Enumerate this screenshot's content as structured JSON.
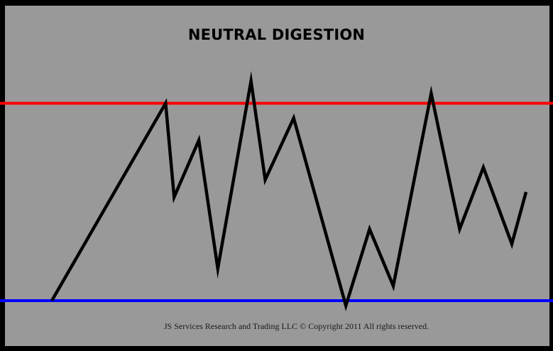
{
  "title": "NEUTRAL DIGESTION",
  "copyright": "JS Services Research and Trading LLC © Copyright 2011 All rights reserved.",
  "colors": {
    "background": "#999999",
    "frame": "#000000",
    "resistance": "#ff0000",
    "support": "#0000ff",
    "price": "#000000"
  },
  "chart_data": {
    "type": "line",
    "title": "NEUTRAL DIGESTION",
    "xlabel": "",
    "ylabel": "",
    "grid": false,
    "xlim": [
      0,
      100
    ],
    "ylim": [
      0,
      100
    ],
    "resistance": 82,
    "support": 2,
    "series": [
      {
        "x": [
          0,
          24,
          25.8,
          31,
          35,
          42,
          45,
          51,
          62,
          67,
          72,
          80,
          86,
          91,
          97,
          100
        ],
        "y": [
          2,
          82,
          44,
          67,
          15,
          91,
          51,
          76,
          0,
          31,
          8,
          86,
          31,
          56,
          25,
          46
        ]
      }
    ]
  }
}
